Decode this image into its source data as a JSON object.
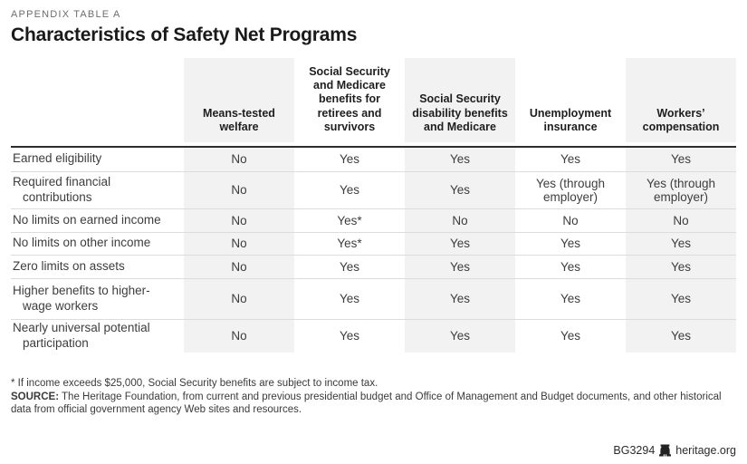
{
  "kicker": "APPENDIX TABLE A",
  "title": "Characteristics of Safety Net Programs",
  "table": {
    "columns": [
      "Means-tested welfare",
      "Social Security and Medicare benefits for retirees and survivors",
      "Social Security disability benefits and Medicare",
      "Unemployment insurance",
      "Workers’ compensation"
    ],
    "rows": [
      {
        "label": "Earned eligibility",
        "values": [
          "No",
          "Yes",
          "Yes",
          "Yes",
          "Yes"
        ]
      },
      {
        "label": "Required financial contributions",
        "values": [
          "No",
          "Yes",
          "Yes",
          "Yes (through employer)",
          "Yes (through employer)"
        ]
      },
      {
        "label": "No limits on earned income",
        "values": [
          "No",
          "Yes*",
          "No",
          "No",
          "No"
        ]
      },
      {
        "label": "No limits on other income",
        "values": [
          "No",
          "Yes*",
          "Yes",
          "Yes",
          "Yes"
        ]
      },
      {
        "label": "Zero limits on assets",
        "values": [
          "No",
          "Yes",
          "Yes",
          "Yes",
          "Yes"
        ]
      },
      {
        "label": "Higher benefits to higher-wage workers",
        "values": [
          "No",
          "Yes",
          "Yes",
          "Yes",
          "Yes"
        ]
      },
      {
        "label": "Nearly universal potential participation",
        "values": [
          "No",
          "Yes",
          "Yes",
          "Yes",
          "Yes"
        ]
      }
    ],
    "shaded_column_indexes": [
      0,
      2,
      4
    ]
  },
  "footnotes": {
    "asterisk": "* If income exceeds $25,000, Social Security benefits are subject to income tax.",
    "source_label": "SOURCE:",
    "source_text": "The Heritage Foundation, from current and previous presidential budget and Office of Management and Budget documents, and other historical data from official government agency Web sites and resources."
  },
  "footer": {
    "report_id": "BG3294",
    "site": "heritage.org",
    "logo_icon": "heritage-bell-icon"
  },
  "colors": {
    "shaded_column": "#f2f2f2",
    "header_rule": "#2d2d2d",
    "row_divider": "#dcdcdc",
    "body_text": "#3d3d3d",
    "heading_text": "#1a1a1a",
    "kicker_text": "#6d6d6d"
  }
}
